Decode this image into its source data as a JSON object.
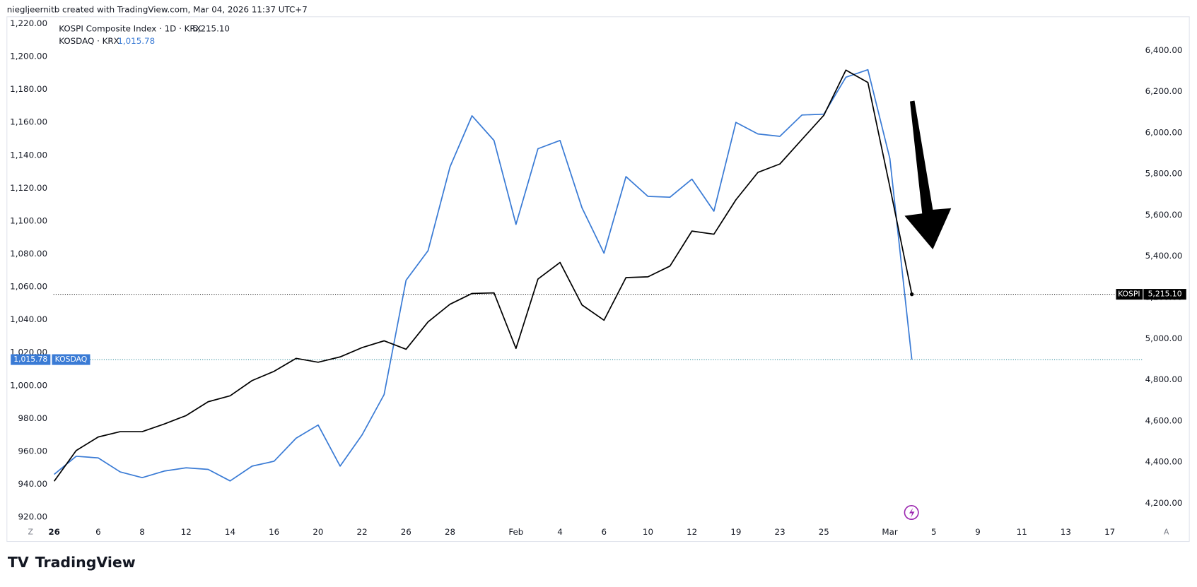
{
  "header": "niegljeernitb created with TradingView.com, Mar 04, 2026 11:37 UTC+7",
  "footer": {
    "brand": "TradingView",
    "left_button": "Z",
    "right_button": "A"
  },
  "chart_data": {
    "type": "line",
    "x": [
      0,
      1,
      2,
      3,
      4,
      5,
      6,
      7,
      8,
      9,
      10,
      11,
      12,
      13,
      14,
      15,
      16,
      17,
      18,
      19,
      20,
      21,
      22,
      23,
      24,
      25,
      26,
      27,
      28,
      29,
      30,
      31,
      32,
      33,
      34,
      35,
      36,
      37,
      38,
      39
    ],
    "xlim": [
      -2.15,
      49.5
    ],
    "xticks": [
      {
        "value": 0,
        "label": "26"
      },
      {
        "value": 2,
        "label": "6"
      },
      {
        "value": 4,
        "label": "8"
      },
      {
        "value": 6,
        "label": "12"
      },
      {
        "value": 8,
        "label": "14"
      },
      {
        "value": 10,
        "label": "16"
      },
      {
        "value": 12,
        "label": "20"
      },
      {
        "value": 14,
        "label": "22"
      },
      {
        "value": 16,
        "label": "26"
      },
      {
        "value": 18,
        "label": "28"
      },
      {
        "value": 21,
        "label": "Feb"
      },
      {
        "value": 23,
        "label": "4"
      },
      {
        "value": 25,
        "label": "6"
      },
      {
        "value": 27,
        "label": "10"
      },
      {
        "value": 29,
        "label": "12"
      },
      {
        "value": 31,
        "label": "19"
      },
      {
        "value": 33,
        "label": "23"
      },
      {
        "value": 35,
        "label": "25"
      },
      {
        "value": 38,
        "label": "Mar"
      },
      {
        "value": 40,
        "label": "5"
      },
      {
        "value": 42,
        "label": "9"
      },
      {
        "value": 44,
        "label": "11"
      },
      {
        "value": 46,
        "label": "13"
      },
      {
        "value": 48,
        "label": "17"
      }
    ],
    "ylim": [
      915.4,
      1224.2
    ],
    "yticks": [
      {
        "value": 920,
        "label": "920.00"
      },
      {
        "value": 940,
        "label": "940.00"
      },
      {
        "value": 960,
        "label": "960.00"
      },
      {
        "value": 980,
        "label": "980.00"
      },
      {
        "value": 1000,
        "label": "1,000.00"
      },
      {
        "value": 1020,
        "label": "1,020.00"
      },
      {
        "value": 1040,
        "label": "1,040.00"
      },
      {
        "value": 1060,
        "label": "1,060.00"
      },
      {
        "value": 1080,
        "label": "1,080.00"
      },
      {
        "value": 1100,
        "label": "1,100.00"
      },
      {
        "value": 1120,
        "label": "1,120.00"
      },
      {
        "value": 1140,
        "label": "1,140.00"
      },
      {
        "value": 1160,
        "label": "1,160.00"
      },
      {
        "value": 1180,
        "label": "1,180.00"
      },
      {
        "value": 1200,
        "label": "1,200.00"
      },
      {
        "value": 1220,
        "label": "1,220.00"
      }
    ],
    "y2lim": [
      4096,
      6563
    ],
    "y2ticks": [
      {
        "value": 4200,
        "label": "4,200.00"
      },
      {
        "value": 4400,
        "label": "4,400.00"
      },
      {
        "value": 4600,
        "label": "4,600.00"
      },
      {
        "value": 4800,
        "label": "4,800.00"
      },
      {
        "value": 5000,
        "label": "5,000.00"
      },
      {
        "value": 5200,
        "label": "5,200.00"
      },
      {
        "value": 5400,
        "label": "5,400.00"
      },
      {
        "value": 5600,
        "label": "5,600.00"
      },
      {
        "value": 5800,
        "label": "5,800.00"
      },
      {
        "value": 6000,
        "label": "6,000.00"
      },
      {
        "value": 6200,
        "label": "6,200.00"
      },
      {
        "value": 6400,
        "label": "6,400.00"
      }
    ],
    "series": [
      {
        "name": "KOSPI Composite Index · 1D · KRX",
        "short_name": "KOSPI",
        "color": "#000000",
        "axis": "y2",
        "values": [
          4307,
          4456,
          4522,
          4548,
          4548,
          4585,
          4626,
          4693,
          4722,
          4796,
          4841,
          4904,
          4885,
          4911,
          4956,
          4989,
          4948,
          5081,
          5167,
          5219,
          5222,
          4952,
          5289,
          5370,
          5163,
          5089,
          5296,
          5300,
          5352,
          5522,
          5507,
          5674,
          5807,
          5848,
          5967,
          6085,
          6304,
          6244,
          5737,
          5215.1
        ],
        "last_label": "5,215.10"
      },
      {
        "name": "KOSDAQ · KRX",
        "short_name": "KOSDAQ",
        "color": "#3a7bd5",
        "values": [
          946,
          957,
          956,
          947.5,
          944,
          948,
          950,
          949,
          942,
          951,
          954,
          968,
          976,
          951,
          970,
          994.5,
          1064,
          1082,
          1133,
          1164,
          1149,
          1098,
          1144,
          1149,
          1108,
          1080.5,
          1127,
          1115,
          1114.5,
          1125.5,
          1106,
          1160,
          1153,
          1151.5,
          1164.5,
          1165,
          1187.5,
          1192,
          1138,
          1015.78
        ],
        "last_label": "1,015.78"
      }
    ]
  }
}
